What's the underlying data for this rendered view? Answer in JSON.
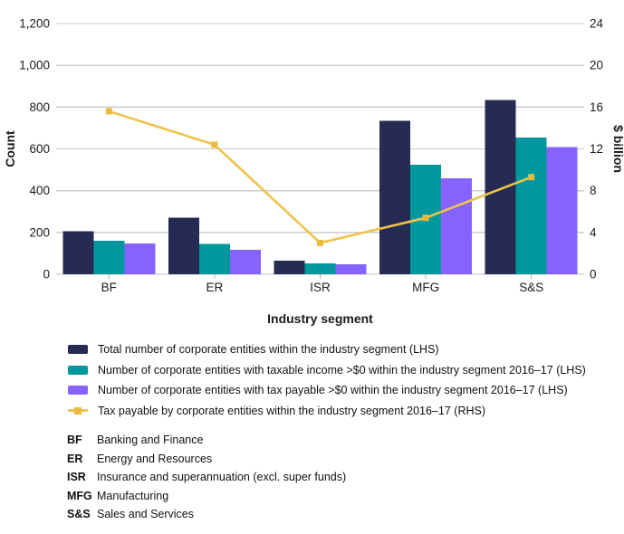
{
  "chart_data": {
    "type": "bar",
    "subtype": "grouped-bars-with-line-secondary-axis",
    "categories": [
      "BF",
      "ER",
      "ISR",
      "MFG",
      "S&S"
    ],
    "bar_series": [
      {
        "name": "Total number of corporate entities within the industry segment (LHS)",
        "axis": "LHS",
        "color": "#262b54",
        "values": [
          205,
          270,
          65,
          735,
          835
        ]
      },
      {
        "name": "Number of corporate entities with taxable income >$0 within the industry segment 2016–17 (LHS)",
        "axis": "LHS",
        "color": "#00989c",
        "values": [
          160,
          145,
          53,
          525,
          655
        ]
      },
      {
        "name": "Number of corporate entities with tax payable >$0 within the industry segment 2016–17 (LHS)",
        "axis": "LHS",
        "color": "#8763fe",
        "values": [
          148,
          118,
          48,
          460,
          608
        ]
      }
    ],
    "line_series": [
      {
        "name": "Tax payable by corporate entities within the industry segment 2016–17 (RHS)",
        "axis": "RHS",
        "color": "#efc34b",
        "marker_color": "#e9ba3e",
        "marker": "square",
        "values": [
          15.6,
          12.4,
          3.0,
          5.4,
          9.3
        ]
      }
    ],
    "xlabel": "Industry segment",
    "ylabel_left": "Count",
    "ylabel_right": "$ billion",
    "ylim_left": [
      0,
      1200
    ],
    "ylim_right": [
      0,
      24
    ],
    "yticks_left": [
      "0",
      "200",
      "400",
      "600",
      "800",
      "1,000",
      "1,200"
    ],
    "yticks_right": [
      "0",
      "4",
      "8",
      "12",
      "16",
      "20",
      "24"
    ],
    "grid": true,
    "gridline_color": "#cdcdcd",
    "baseline_color": "#c2c2c2",
    "legend_position": "bottom-left"
  },
  "abbreviations": {
    "items": [
      {
        "abbr": "BF",
        "definition": "Banking and Finance"
      },
      {
        "abbr": "ER",
        "definition": "Energy and Resources"
      },
      {
        "abbr": "ISR",
        "definition": "Insurance and superannuation (excl. super funds)"
      },
      {
        "abbr": "MFG",
        "definition": "Manufacturing"
      },
      {
        "abbr": "S&S",
        "definition": "Sales and Services"
      }
    ]
  }
}
